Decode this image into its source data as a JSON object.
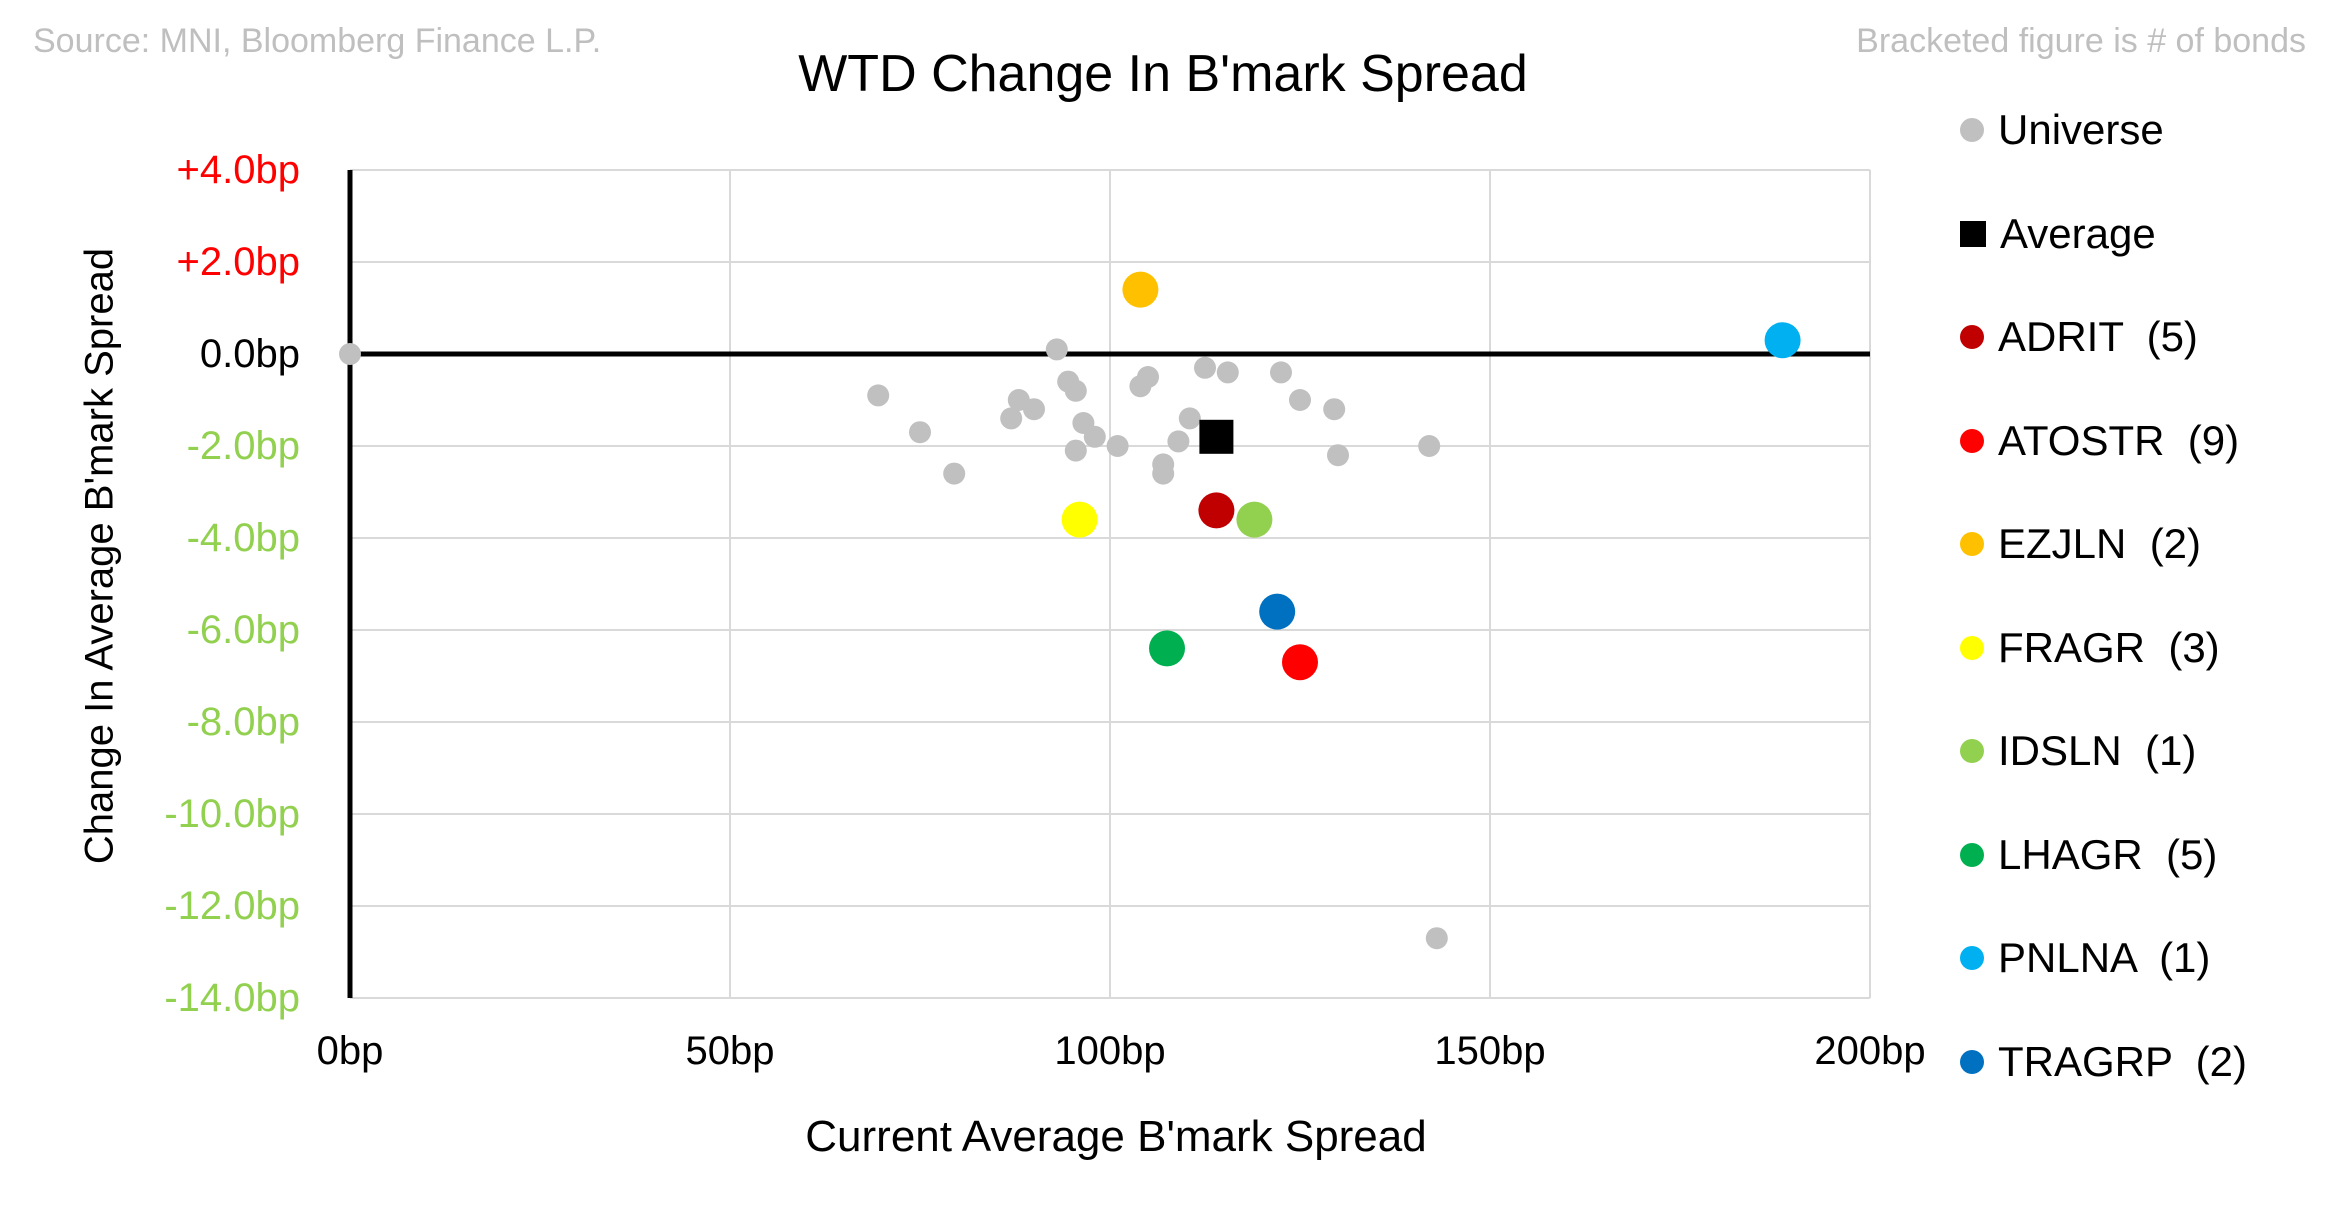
{
  "notes": {
    "source": "Source: MNI, Bloomberg Finance L.P.",
    "bracket": "Bracketed figure is # of bonds"
  },
  "chart_data": {
    "type": "scatter",
    "title": "WTD Change In B'mark Spread",
    "xlabel": "Current Average B'mark Spread",
    "ylabel": "Change In Average B'mark Spread",
    "xlim": [
      0,
      200
    ],
    "ylim": [
      -14,
      4
    ],
    "x_ticks": [
      0,
      50,
      100,
      150,
      200
    ],
    "x_tick_labels": [
      "0bp",
      "50bp",
      "100bp",
      "150bp",
      "200bp"
    ],
    "y_ticks": [
      4,
      2,
      0,
      -2,
      -4,
      -6,
      -8,
      -10,
      -12,
      -14
    ],
    "y_tick_labels": [
      "+4.0bp",
      "+2.0bp",
      "0.0bp",
      "-2.0bp",
      "-4.0bp",
      "-6.0bp",
      "-8.0bp",
      "-10.0bp",
      "-12.0bp",
      "-14.0bp"
    ],
    "y_tick_colors": [
      "#ff0000",
      "#ff0000",
      "#000000",
      "#92d050",
      "#92d050",
      "#92d050",
      "#92d050",
      "#92d050",
      "#92d050",
      "#92d050"
    ],
    "grid": true,
    "legend_position": "right",
    "series": [
      {
        "name": "Universe",
        "color": "#c0c0c0",
        "marker": "circle-small",
        "points": [
          [
            0,
            0
          ],
          [
            69.5,
            -0.9
          ],
          [
            75,
            -1.7
          ],
          [
            79.5,
            -2.6
          ],
          [
            87,
            -1.4
          ],
          [
            88,
            -1.0
          ],
          [
            90,
            -1.2
          ],
          [
            93,
            0.1
          ],
          [
            94.5,
            -0.6
          ],
          [
            95.5,
            -0.8
          ],
          [
            95.5,
            -2.1
          ],
          [
            96.5,
            -1.5
          ],
          [
            98,
            -1.8
          ],
          [
            101,
            -2.0
          ],
          [
            104,
            -0.7
          ],
          [
            105,
            -0.5
          ],
          [
            107,
            -2.4
          ],
          [
            107,
            -2.6
          ],
          [
            109,
            -1.9
          ],
          [
            110.5,
            -1.4
          ],
          [
            112.5,
            -0.3
          ],
          [
            115.5,
            -0.4
          ],
          [
            122.5,
            -0.4
          ],
          [
            125,
            -1.0
          ],
          [
            129.5,
            -1.2
          ],
          [
            130,
            -2.2
          ],
          [
            142,
            -2.0
          ],
          [
            143,
            -12.7
          ]
        ]
      },
      {
        "name": "Average",
        "color": "#000000",
        "marker": "square",
        "points": [
          [
            114,
            -1.8
          ]
        ]
      },
      {
        "name": "ADRIT",
        "count": "(5)",
        "color": "#c00000",
        "marker": "circle",
        "points": [
          [
            114,
            -3.4
          ]
        ]
      },
      {
        "name": "ATOSTR",
        "count": "(9)",
        "color": "#ff0000",
        "marker": "circle",
        "points": [
          [
            125,
            -6.7
          ]
        ]
      },
      {
        "name": "EZJLN",
        "count": "(2)",
        "color": "#ffc000",
        "marker": "circle",
        "points": [
          [
            104,
            1.4
          ]
        ]
      },
      {
        "name": "FRAGR",
        "count": "(3)",
        "color": "#ffff00",
        "marker": "circle",
        "points": [
          [
            96,
            -3.6
          ]
        ]
      },
      {
        "name": "IDSLN",
        "count": "(1)",
        "color": "#92d050",
        "marker": "circle",
        "points": [
          [
            119,
            -3.6
          ]
        ]
      },
      {
        "name": "LHAGR",
        "count": "(5)",
        "color": "#00b050",
        "marker": "circle",
        "points": [
          [
            107.5,
            -6.4
          ]
        ]
      },
      {
        "name": "PNLNA",
        "count": "(1)",
        "color": "#00b0f0",
        "marker": "circle",
        "points": [
          [
            188.5,
            0.3
          ]
        ]
      },
      {
        "name": "TRAGRP",
        "count": "(2)",
        "color": "#0070c0",
        "marker": "circle",
        "points": [
          [
            122,
            -5.6
          ]
        ]
      }
    ]
  }
}
